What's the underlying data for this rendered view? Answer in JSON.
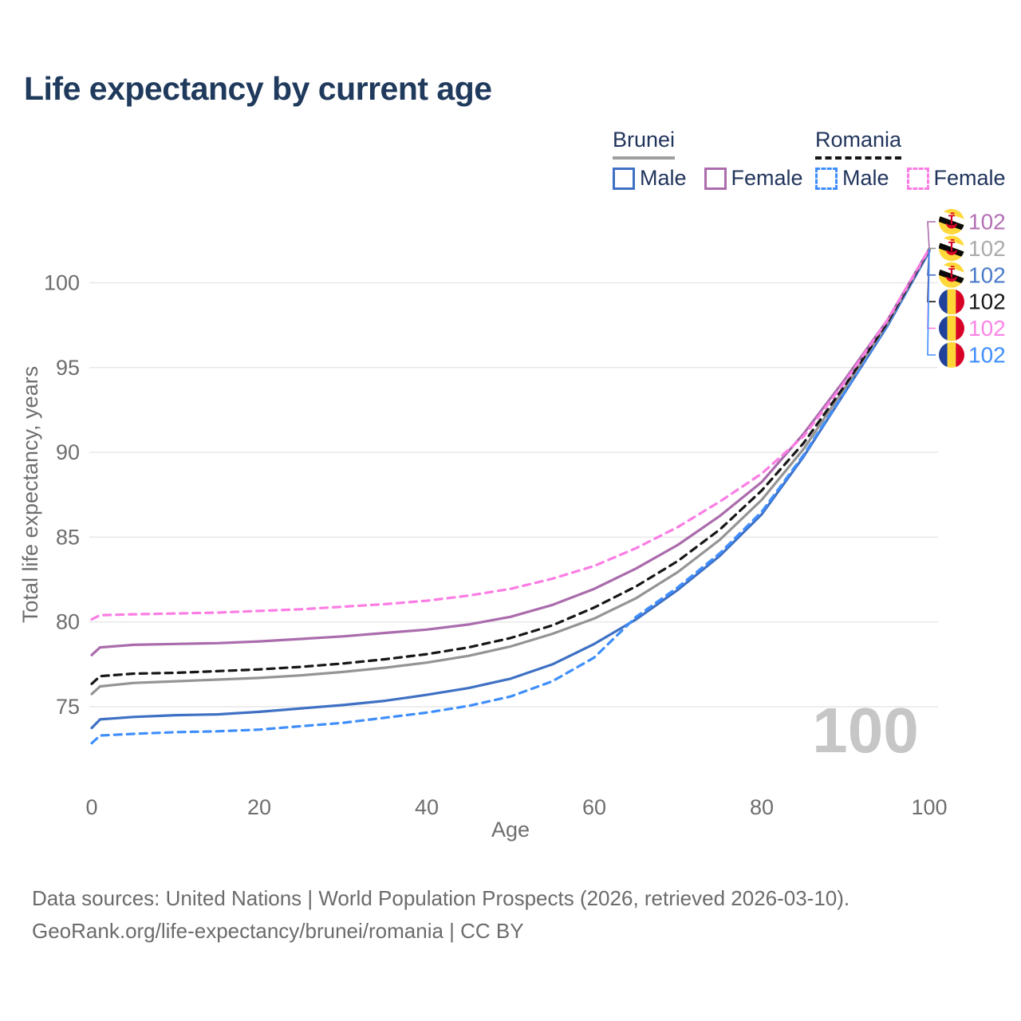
{
  "title": "Life expectancy by current age",
  "legend": {
    "groups": [
      {
        "name": "Brunei",
        "underline": "solid",
        "underline_color": "#9e9e9e",
        "items": [
          {
            "label": "Male",
            "line_style": "solid",
            "color": "#3e70c4"
          },
          {
            "label": "Female",
            "line_style": "solid",
            "color": "#aa6cac"
          }
        ]
      },
      {
        "name": "Romania",
        "underline": "dashed",
        "underline_color": "#161616",
        "items": [
          {
            "label": "Male",
            "line_style": "dashed",
            "color": "#3f8efc"
          },
          {
            "label": "Female",
            "line_style": "dashed",
            "color": "#fb7de4"
          }
        ]
      }
    ]
  },
  "chart_data": {
    "type": "line",
    "title": "Life expectancy by current age",
    "xlabel": "Age",
    "ylabel": "Total life expectancy, years",
    "xlim": [
      0,
      100
    ],
    "ylim": [
      72.5,
      103
    ],
    "x_ticks": [
      0,
      20,
      40,
      60,
      80,
      100
    ],
    "y_ticks": [
      75,
      80,
      85,
      90,
      95,
      100
    ],
    "grid": "horizontal-only",
    "grid_color": "#e8e8e8",
    "tick_color": "#6e6e6e",
    "legend_position": "top-right",
    "current_age_watermark": "100",
    "watermark_color": "#c6c6c6",
    "ages": [
      0,
      1,
      5,
      10,
      15,
      20,
      25,
      30,
      35,
      40,
      45,
      50,
      55,
      60,
      65,
      70,
      75,
      80,
      85,
      90,
      95,
      100
    ],
    "series": [
      {
        "name": "Brunei Female",
        "country": "Brunei",
        "sex": "Female",
        "color": "#aa6cac",
        "label_color": "#b470b4",
        "dashed": false,
        "flag": "brunei",
        "end_label": "102",
        "values": [
          78.05,
          78.5,
          78.65,
          78.7,
          78.75,
          78.85,
          79.0,
          79.15,
          79.35,
          79.55,
          79.85,
          80.3,
          81.0,
          81.95,
          83.15,
          84.55,
          86.25,
          88.25,
          91.1,
          94.35,
          97.8,
          102
        ]
      },
      {
        "name": "Brunei (both sexes)",
        "country": "Brunei",
        "sex": "Both",
        "color": "#949494",
        "label_color": "#ababab",
        "dashed": false,
        "flag": "brunei",
        "end_label": "102",
        "values": [
          75.75,
          76.2,
          76.4,
          76.5,
          76.6,
          76.7,
          76.85,
          77.05,
          77.3,
          77.6,
          78.0,
          78.55,
          79.3,
          80.2,
          81.4,
          82.95,
          84.85,
          87.2,
          90.2,
          93.85,
          97.6,
          101.95
        ]
      },
      {
        "name": "Brunei Male",
        "country": "Brunei",
        "sex": "Male",
        "color": "#3e70c4",
        "label_color": "#4a7ac9",
        "dashed": false,
        "flag": "brunei",
        "end_label": "102",
        "values": [
          73.75,
          74.25,
          74.4,
          74.5,
          74.55,
          74.7,
          74.9,
          75.1,
          75.35,
          75.7,
          76.1,
          76.65,
          77.5,
          78.7,
          80.15,
          81.9,
          83.9,
          86.35,
          89.75,
          93.6,
          97.45,
          101.85
        ]
      },
      {
        "name": "Romania (both sexes)",
        "country": "Romania",
        "sex": "Both",
        "color": "#161616",
        "label_color": "#161616",
        "dashed": true,
        "flag": "romania",
        "end_label": "102",
        "values": [
          76.35,
          76.8,
          76.95,
          77.0,
          77.1,
          77.2,
          77.35,
          77.55,
          77.8,
          78.1,
          78.5,
          79.05,
          79.8,
          80.85,
          82.1,
          83.6,
          85.45,
          87.75,
          90.55,
          94.0,
          97.65,
          101.95
        ]
      },
      {
        "name": "Romania Female",
        "country": "Romania",
        "sex": "Female",
        "color": "#fb7de4",
        "label_color": "#fc86e6",
        "dashed": true,
        "flag": "romania",
        "end_label": "102",
        "values": [
          80.15,
          80.4,
          80.45,
          80.5,
          80.55,
          80.65,
          80.75,
          80.9,
          81.05,
          81.25,
          81.55,
          81.95,
          82.55,
          83.3,
          84.35,
          85.6,
          87.1,
          88.75,
          90.95,
          94.2,
          97.8,
          102
        ]
      },
      {
        "name": "Romania Male",
        "country": "Romania",
        "sex": "Male",
        "color": "#3f8efc",
        "label_color": "#3f8efc",
        "dashed": true,
        "flag": "romania",
        "end_label": "102",
        "values": [
          72.85,
          73.3,
          73.4,
          73.5,
          73.55,
          73.65,
          73.85,
          74.05,
          74.35,
          74.65,
          75.05,
          75.6,
          76.5,
          77.9,
          80.3,
          82.05,
          84.05,
          86.5,
          89.85,
          93.65,
          97.5,
          101.9
        ]
      }
    ]
  },
  "footer": {
    "line1": "Data sources: United Nations | World Population Prospects (2026, retrieved 2026-03-10).",
    "line2": "GeoRank.org/life-expectancy/brunei/romania | CC BY"
  }
}
